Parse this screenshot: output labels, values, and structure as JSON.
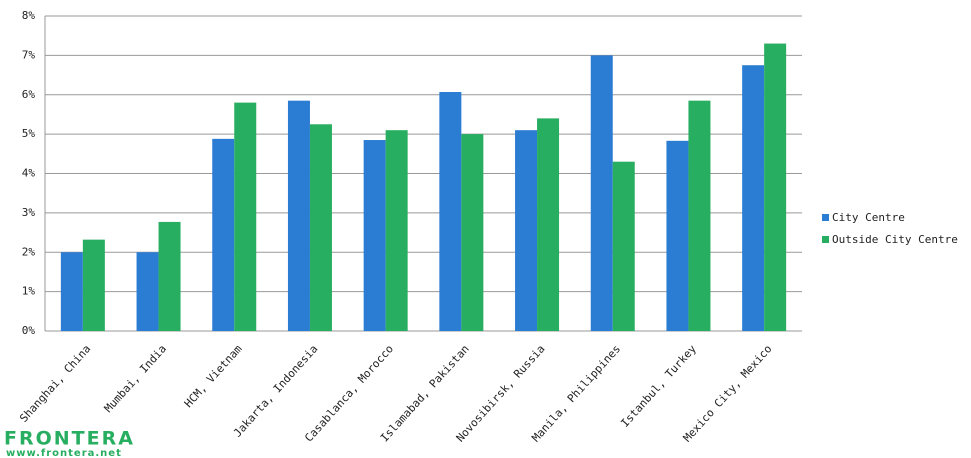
{
  "chart_data": {
    "type": "bar",
    "categories": [
      "Shanghai, China",
      "Mumbai, India",
      "HCM, Vietnam",
      "Jakarta, Indonesia",
      "Casablanca, Morocco",
      "Islamabad, Pakistan",
      "Novosibirsk, Russia",
      "Manila, Philippines",
      "Istanbul, Turkey",
      "Mexico City, Mexico"
    ],
    "series": [
      {
        "name": "City Centre",
        "color": "#2b7cd3",
        "values": [
          2.0,
          2.0,
          4.88,
          5.85,
          4.85,
          6.07,
          5.1,
          7.0,
          4.83,
          6.75
        ]
      },
      {
        "name": "Outside City Centre",
        "color": "#27ae60",
        "values": [
          2.32,
          2.77,
          5.8,
          5.25,
          5.1,
          5.0,
          5.4,
          4.3,
          5.85,
          7.3
        ]
      }
    ],
    "ylim": [
      0,
      8
    ],
    "yticks": [
      {
        "value": 0,
        "label": "0%"
      },
      {
        "value": 1,
        "label": "1%"
      },
      {
        "value": 2,
        "label": "2%"
      },
      {
        "value": 3,
        "label": "3%"
      },
      {
        "value": 4,
        "label": "4%"
      },
      {
        "value": 5,
        "label": "5%"
      },
      {
        "value": 6,
        "label": "6%"
      },
      {
        "value": 7,
        "label": "7%"
      },
      {
        "value": 8,
        "label": "8%"
      }
    ],
    "grid": true,
    "legend": "right"
  },
  "logo": {
    "name": "FRONTERA",
    "url": "www.frontera.net"
  }
}
